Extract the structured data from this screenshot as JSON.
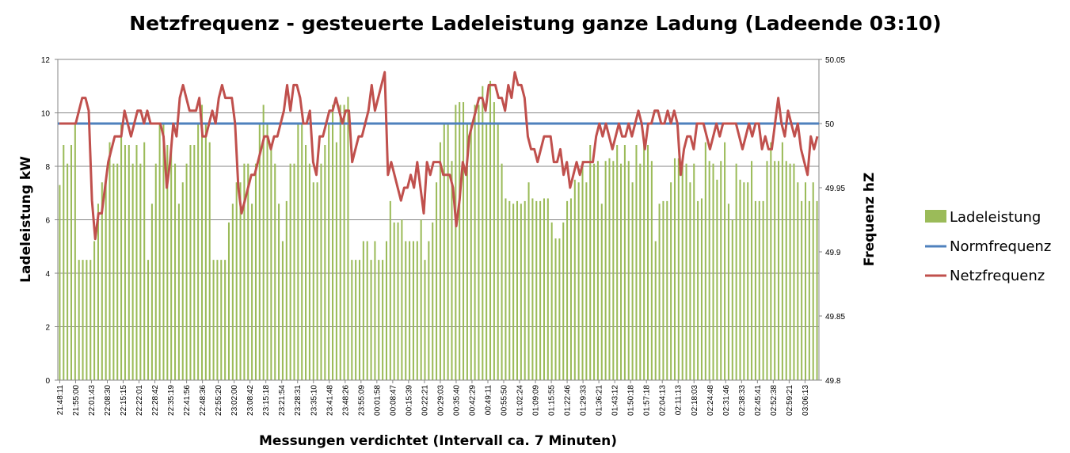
{
  "chart_data": {
    "type": "bar+line",
    "title": "Netzfrequenz - gesteuerte Ladeleistung ganze Ladung (Ladeende 03:10)",
    "xlabel": "Messungen verdichtet (Intervall ca. 7 Minuten)",
    "ylabel": "Ladeleistung kW",
    "y2label": "Frequenz hZ",
    "ylim": [
      0,
      12
    ],
    "y2lim": [
      49.8,
      50.05
    ],
    "yticks": [
      "0",
      "2",
      "4",
      "6",
      "8",
      "10",
      "12"
    ],
    "y2ticks": [
      "49.8",
      "49.85",
      "49.9",
      "49.95",
      "50",
      "50.05"
    ],
    "grid": true,
    "legend_position": "right",
    "legend": [
      {
        "name": "Ladeleistung",
        "kind": "bar",
        "color": "#9bbb59"
      },
      {
        "name": "Normfrequenz",
        "kind": "line",
        "color": "#4f81bd"
      },
      {
        "name": "Netzfrequenz",
        "kind": "line",
        "color": "#c0504d"
      }
    ],
    "x_tick_labels": [
      "21:48:11",
      "21:55:00",
      "22:01:43",
      "22:08:30",
      "22:15:15",
      "22:22:01",
      "22:28:42",
      "22:35:19",
      "22:41:56",
      "22:48:36",
      "22:55:20",
      "23:02:00",
      "23:08:42",
      "23:15:18",
      "23:21:54",
      "23:28:31",
      "23:35:10",
      "23:41:48",
      "23:48:26",
      "23:55:09",
      "00:01:58",
      "00:08:47",
      "00:15:39",
      "00:22:21",
      "00:29:03",
      "00:35:40",
      "00:42:29",
      "00:49:11",
      "00:55:50",
      "01:02:24",
      "01:09:09",
      "01:15:55",
      "01:22:46",
      "01:29:33",
      "01:36:21",
      "01:43:12",
      "01:50:18",
      "01:57:18",
      "02:04:13",
      "02:11:13",
      "02:18:03",
      "02:24:48",
      "02:31:46",
      "02:38:33",
      "02:45:41",
      "02:52:38",
      "02:59:21",
      "03:06:13"
    ],
    "series": [
      {
        "name": "Ladeleistung",
        "type": "bar",
        "axis": "left",
        "color": "#9bbb59",
        "values": [
          7.3,
          8.8,
          8.1,
          8.8,
          9.6,
          4.5,
          4.5,
          4.5,
          4.5,
          5.2,
          6.6,
          7.4,
          7.4,
          8.9,
          8.1,
          8.1,
          9.6,
          8.8,
          8.8,
          8.1,
          8.8,
          8.1,
          8.9,
          4.5,
          6.6,
          8.1,
          9.6,
          9.6,
          8.8,
          8.8,
          8.1,
          6.6,
          7.4,
          8.1,
          8.8,
          8.8,
          9.6,
          10.3,
          9.6,
          8.9,
          4.5,
          4.5,
          4.5,
          4.5,
          5.9,
          6.6,
          7.4,
          7.4,
          8.1,
          8.1,
          6.6,
          8.1,
          9.6,
          10.3,
          9.6,
          8.8,
          8.1,
          6.6,
          5.2,
          6.7,
          8.1,
          8.1,
          9.6,
          9.6,
          8.8,
          8.1,
          7.4,
          7.4,
          8.1,
          8.8,
          9.6,
          10.3,
          8.9,
          10.3,
          10.3,
          10.6,
          4.5,
          4.5,
          4.5,
          5.2,
          5.2,
          4.5,
          5.2,
          4.5,
          4.5,
          5.2,
          6.7,
          5.9,
          5.9,
          6.0,
          5.2,
          5.2,
          5.2,
          5.2,
          6.0,
          4.5,
          5.2,
          5.9,
          7.4,
          8.9,
          9.6,
          9.6,
          8.2,
          10.3,
          10.4,
          10.4,
          9.6,
          9.6,
          10.3,
          10.3,
          11.0,
          9.6,
          11.2,
          10.4,
          9.6,
          8.1,
          6.8,
          6.7,
          6.6,
          6.7,
          6.6,
          6.7,
          7.4,
          6.8,
          6.7,
          6.7,
          6.8,
          6.8,
          5.9,
          5.3,
          5.3,
          5.9,
          6.7,
          6.8,
          7.5,
          7.4,
          8.2,
          7.4,
          8.8,
          8.1,
          8.2,
          6.6,
          8.2,
          8.3,
          8.2,
          8.8,
          8.1,
          8.8,
          8.2,
          7.4,
          8.8,
          8.1,
          8.8,
          8.8,
          8.2,
          5.2,
          6.6,
          6.7,
          6.7,
          7.4,
          8.3,
          8.3,
          8.2,
          8.1,
          7.4,
          8.1,
          6.7,
          6.8,
          8.9,
          8.2,
          8.1,
          7.5,
          8.2,
          8.9,
          6.6,
          6.0,
          8.1,
          7.5,
          7.4,
          7.4,
          8.2,
          6.7,
          6.7,
          6.7,
          8.2,
          8.9,
          8.2,
          8.2,
          8.9,
          8.2,
          8.1,
          8.1,
          7.4,
          6.7,
          7.4,
          6.7,
          7.4,
          6.7
        ]
      },
      {
        "name": "Normfrequenz",
        "type": "line",
        "axis": "right",
        "color": "#4f81bd",
        "values": [
          50.0,
          50.0
        ]
      },
      {
        "name": "Netzfrequenz",
        "type": "line",
        "axis": "right",
        "color": "#c0504d",
        "values": [
          50.0,
          50.0,
          50.0,
          50.0,
          50.0,
          50.0,
          50.01,
          50.02,
          50.02,
          50.01,
          49.94,
          49.91,
          49.93,
          49.93,
          49.95,
          49.97,
          49.98,
          49.99,
          49.99,
          49.99,
          50.01,
          50.0,
          49.99,
          50.0,
          50.01,
          50.01,
          50.0,
          50.01,
          50.0,
          50.0,
          50.0,
          50.0,
          49.99,
          49.95,
          49.97,
          50.0,
          49.99,
          50.02,
          50.03,
          50.02,
          50.01,
          50.01,
          50.01,
          50.02,
          49.99,
          49.99,
          50.0,
          50.01,
          50.0,
          50.02,
          50.03,
          50.02,
          50.02,
          50.02,
          50.0,
          49.95,
          49.93,
          49.94,
          49.95,
          49.96,
          49.96,
          49.97,
          49.98,
          49.99,
          49.99,
          49.98,
          49.99,
          49.99,
          50.0,
          50.01,
          50.03,
          50.01,
          50.03,
          50.03,
          50.02,
          50.0,
          50.0,
          50.01,
          49.97,
          49.96,
          49.99,
          49.99,
          50.0,
          50.01,
          50.01,
          50.02,
          50.01,
          50.0,
          50.01,
          50.01,
          49.97,
          49.98,
          49.99,
          49.99,
          50.0,
          50.01,
          50.03,
          50.01,
          50.02,
          50.03,
          50.04,
          49.96,
          49.97,
          49.96,
          49.95,
          49.94,
          49.95,
          49.95,
          49.96,
          49.95,
          49.97,
          49.95,
          49.93,
          49.97,
          49.96,
          49.97,
          49.97,
          49.97,
          49.96,
          49.96,
          49.96,
          49.95,
          49.92,
          49.94,
          49.97,
          49.96,
          49.99,
          50.0,
          50.01,
          50.02,
          50.02,
          50.01,
          50.03,
          50.03,
          50.03,
          50.02,
          50.02,
          50.01,
          50.03,
          50.02,
          50.04,
          50.03,
          50.03,
          50.02,
          49.99,
          49.98,
          49.98,
          49.97,
          49.98,
          49.99,
          49.99,
          49.99,
          49.97,
          49.97,
          49.98,
          49.96,
          49.97,
          49.95,
          49.96,
          49.97,
          49.96,
          49.97,
          49.97,
          49.97,
          49.97,
          49.99,
          50.0,
          49.99,
          50.0,
          49.99,
          49.98,
          49.99,
          50.0,
          49.99,
          49.99,
          50.0,
          49.99,
          50.0,
          50.01,
          50.0,
          49.98,
          50.0,
          50.0,
          50.01,
          50.01,
          50.0,
          50.0,
          50.01,
          50.0,
          50.01,
          50.0,
          49.96,
          49.98,
          49.99,
          49.99,
          49.98,
          50.0,
          50.0,
          50.0,
          49.99,
          49.98,
          49.99,
          50.0,
          49.99,
          50.0,
          50.0,
          50.0,
          50.0,
          50.0,
          49.99,
          49.98,
          49.99,
          50.0,
          49.99,
          50.0,
          50.0,
          49.98,
          49.99,
          49.98,
          49.98,
          50.0,
          50.02,
          50.0,
          49.99,
          50.01,
          50.0,
          49.99,
          50.0,
          49.98,
          49.97,
          49.96,
          49.99,
          49.98,
          49.99
        ]
      }
    ]
  }
}
